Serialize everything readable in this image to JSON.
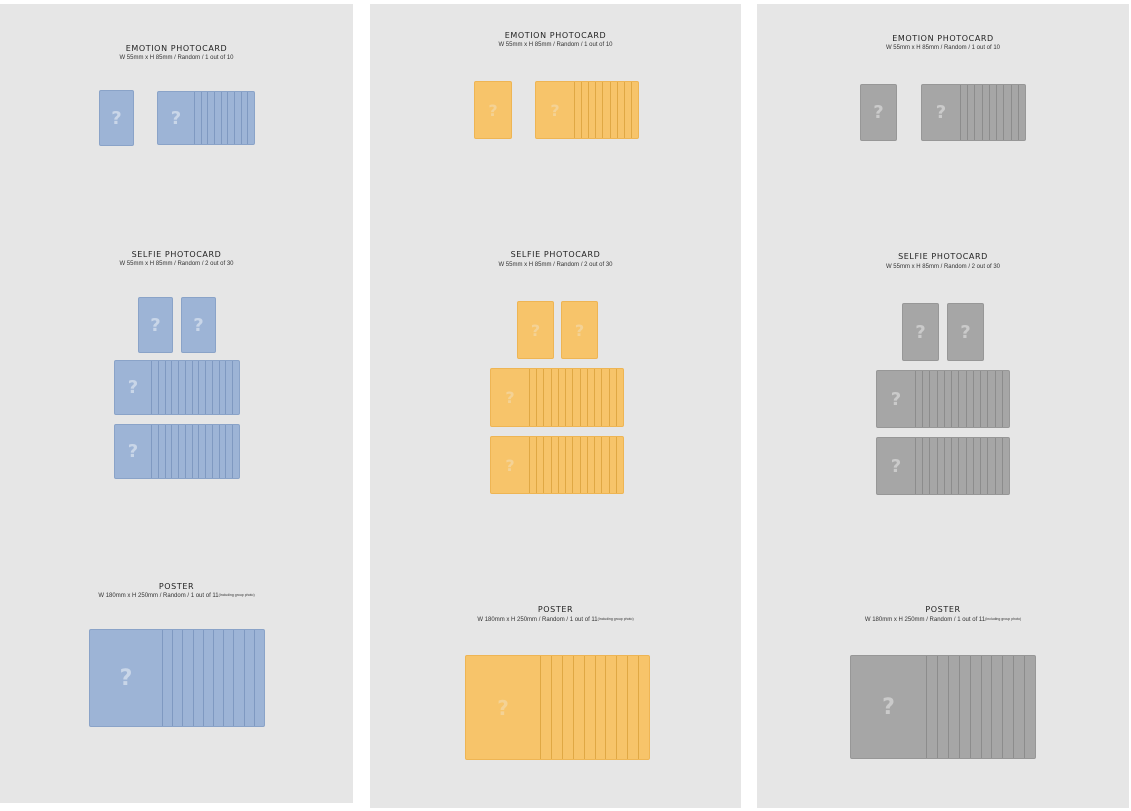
{
  "colors": {
    "blue": {
      "card": "#9db4d6",
      "edge": "#8aa3c8",
      "line": "#7f99c1"
    },
    "yellow": {
      "card": "#f7c46a",
      "edge": "#eeb554",
      "line": "#e0a844"
    },
    "gray": {
      "card": "#a6a6a6",
      "edge": "#979797",
      "line": "#8c8c8c"
    }
  },
  "icon": "question-mark-icon",
  "panels": [
    {
      "theme": "blue",
      "emotion": {
        "title": "EMOTION PHOTOCARD",
        "spec": "W 55mm x H 85mm / Random / 1 out of 10",
        "q": "?"
      },
      "selfie": {
        "title": "SELFIE PHOTOCARD",
        "spec": "W 55mm x H 85mm / Random / 2 out of 30",
        "q": "?"
      },
      "poster": {
        "title": "POSTER",
        "spec": "W 180mm x H 250mm / Random / 1 out of 11",
        "note": "(Including group photo)",
        "q": "?"
      }
    },
    {
      "theme": "yellow",
      "emotion": {
        "title": "EMOTION PHOTOCARD",
        "spec": "W 55mm x H 85mm / Random / 1 out of 10",
        "q": "?"
      },
      "selfie": {
        "title": "SELFIE PHOTOCARD",
        "spec": "W 55mm x H 85mm / Random / 2 out of 30",
        "q": "?"
      },
      "poster": {
        "title": "POSTER",
        "spec": "W 180mm x H 250mm / Random / 1 out of 11",
        "note": "(Including group photo)",
        "q": "?"
      }
    },
    {
      "theme": "gray",
      "emotion": {
        "title": "EMOTION PHOTOCARD",
        "spec": "W 55mm x H 85mm / Random / 1 out of 10",
        "q": "?"
      },
      "selfie": {
        "title": "SELFIE PHOTOCARD",
        "spec": "W 55mm x H 85mm / Random / 2 out of 30",
        "q": "?"
      },
      "poster": {
        "title": "POSTER",
        "spec": "W 180mm x H 250mm / Random / 1 out of 11",
        "note": "(Including group photo)",
        "q": "?"
      }
    }
  ]
}
